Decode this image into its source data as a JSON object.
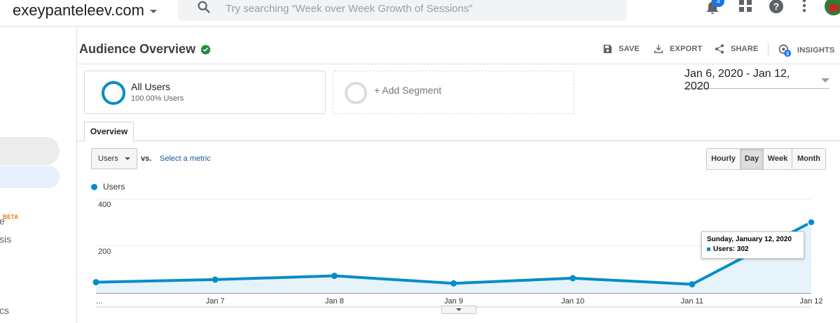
{
  "topbar": {
    "account": "exeypanteleev.com",
    "search_placeholder": "Try searching “Week over Week Growth of Sessions”",
    "notification_count": "3",
    "icons": [
      "search-icon",
      "bell-icon",
      "apps-grid-icon",
      "help-icon",
      "more-vert-icon"
    ]
  },
  "leftnav": {
    "beta": "BETA",
    "fragments": [
      "e",
      "sis",
      "cs"
    ]
  },
  "header": {
    "title": "Audience Overview",
    "actions": {
      "save": "SAVE",
      "export": "EXPORT",
      "share": "SHARE",
      "insights": "INSIGHTS",
      "insights_count": "3"
    }
  },
  "segments": {
    "all_users": {
      "name": "All Users",
      "sub": "100.00% Users"
    },
    "add": "+ Add Segment"
  },
  "date_range": "Jan 6, 2020 - Jan 12, 2020",
  "tabs": {
    "overview": "Overview"
  },
  "metric": {
    "selected": "Users",
    "vs": "vs.",
    "select_metric": "Select a metric"
  },
  "granularity": [
    {
      "label": "Hourly",
      "active": false
    },
    {
      "label": "Day",
      "active": true
    },
    {
      "label": "Week",
      "active": false
    },
    {
      "label": "Month",
      "active": false
    }
  ],
  "tooltip": {
    "title": "Sunday, January 12, 2020",
    "row": "Users: 302"
  },
  "colors": {
    "series": "#058dc7",
    "area": "#e6f3fa"
  },
  "chart_data": {
    "type": "line",
    "title": "",
    "xlabel": "",
    "ylabel": "",
    "categories": [
      "...",
      "Jan 7",
      "Jan 8",
      "Jan 9",
      "Jan 10",
      "Jan 11",
      "Jan 12"
    ],
    "series": [
      {
        "name": "Users",
        "values": [
          46,
          57,
          73,
          41,
          63,
          37,
          302
        ]
      }
    ],
    "yticks": [
      200,
      400
    ],
    "ylim": [
      0,
      400
    ],
    "grid": true,
    "area_fill": true,
    "legend": "top-left"
  }
}
